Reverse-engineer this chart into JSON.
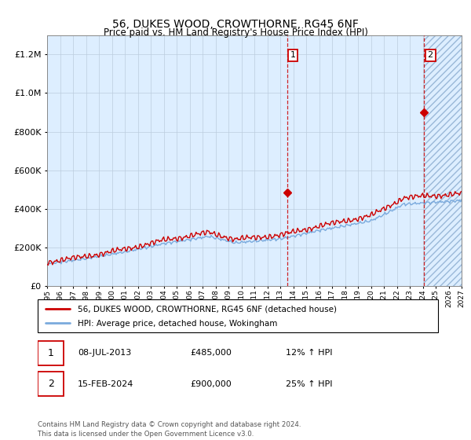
{
  "title": "56, DUKES WOOD, CROWTHORNE, RG45 6NF",
  "subtitle": "Price paid vs. HM Land Registry's House Price Index (HPI)",
  "legend_line1": "56, DUKES WOOD, CROWTHORNE, RG45 6NF (detached house)",
  "legend_line2": "HPI: Average price, detached house, Wokingham",
  "annotation1_label": "1",
  "annotation1_date": "08-JUL-2013",
  "annotation1_price": "£485,000",
  "annotation1_hpi": "12% ↑ HPI",
  "annotation2_label": "2",
  "annotation2_date": "15-FEB-2024",
  "annotation2_price": "£900,000",
  "annotation2_hpi": "25% ↑ HPI",
  "footer": "Contains HM Land Registry data © Crown copyright and database right 2024.\nThis data is licensed under the Open Government Licence v3.0.",
  "hpi_color": "#7aaadd",
  "price_color": "#cc0000",
  "bg_color": "#ddeeff",
  "grid_color": "#bbccdd",
  "ylim": [
    0,
    1300000
  ],
  "sale1_year": 2013.52,
  "sale1_price": 485000,
  "sale2_year": 2024.12,
  "sale2_price": 900000,
  "start_year": 1995,
  "end_year": 2027
}
